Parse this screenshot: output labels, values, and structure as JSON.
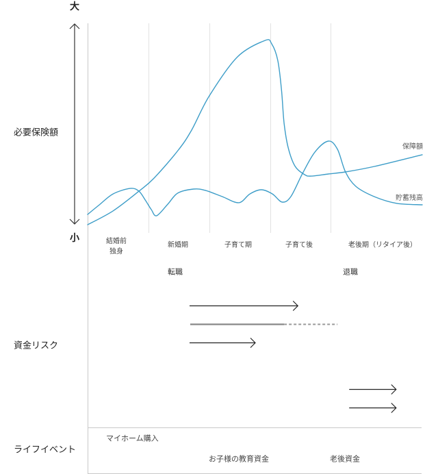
{
  "axis": {
    "top_label": "大",
    "bottom_label": "小"
  },
  "sections": {
    "coverage_label": "必要保険額",
    "risk_label": "資金リスク",
    "life_events_label": "ライフイベント"
  },
  "stages": [
    {
      "line1": "結婚前",
      "line2": "独身"
    },
    {
      "line1": "新婚期"
    },
    {
      "line1": "子育て期"
    },
    {
      "line1": "子育て後"
    },
    {
      "line1": "老後期（リタイア後）"
    }
  ],
  "career_events": [
    {
      "label": "転職"
    },
    {
      "label": "退職"
    }
  ],
  "curve_labels": {
    "coverage": "保障額",
    "savings": "貯蓄残高"
  },
  "risk": {
    "items": [
      {
        "type": "arrow",
        "start": 30.4,
        "end": 62.7,
        "y": 446
      },
      {
        "type": "line",
        "start": 30.6,
        "end": 58.6,
        "dashed_end": 74.5,
        "y": 473
      },
      {
        "type": "arrow",
        "start": 30.4,
        "end": 50.0,
        "y": 500
      },
      {
        "type": "arrow",
        "start": 78.0,
        "end": 92.0,
        "y": 568
      },
      {
        "type": "arrow",
        "start": 78.0,
        "end": 92.0,
        "y": 595
      }
    ]
  },
  "life_events": [
    {
      "label": "マイホーム購入"
    },
    {
      "label": "お子様の教育資金"
    },
    {
      "label": "老後資金"
    }
  ],
  "colors": {
    "curve": "#3d9dc8",
    "axis_arrow": "#333333",
    "risk_arrow": "#222222",
    "risk_line": "#888888",
    "frame": "#c8c8c8",
    "grid": "#e2e2e2"
  },
  "chart_data": {
    "type": "line",
    "title": "",
    "xlabel": "",
    "ylabel": "必要保険額",
    "y_axis_top": "大",
    "y_axis_bottom": "小",
    "xlim": [
      0,
      100
    ],
    "ylim": [
      0,
      100
    ],
    "grid": "vertical lines at stage boundaries",
    "categories": [
      "結婚前 独身",
      "新婚期",
      "子育て期",
      "子育て後",
      "老後期（リタイア後）"
    ],
    "category_boundaries": [
      0,
      18.2,
      36.3,
      54.5,
      72.4,
      100
    ],
    "annotations": [
      {
        "text": "転職",
        "stage": "新婚期"
      },
      {
        "text": "退職",
        "stage": "老後期（リタイア後）"
      }
    ],
    "series": [
      {
        "name": "保障額",
        "points": [
          [
            0.0,
            3.9
          ],
          [
            7.6,
            10.5
          ],
          [
            15.3,
            19.9
          ],
          [
            19.8,
            26.1
          ],
          [
            26.9,
            39.2
          ],
          [
            31.0,
            49.0
          ],
          [
            36.3,
            65.4
          ],
          [
            44.7,
            84.0
          ],
          [
            52.9,
            91.8
          ],
          [
            54.9,
            90.2
          ],
          [
            56.7,
            82.4
          ],
          [
            57.8,
            68.6
          ],
          [
            58.6,
            52.3
          ],
          [
            59.8,
            40.8
          ],
          [
            61.8,
            32.0
          ],
          [
            64.7,
            27.8
          ],
          [
            66.7,
            27.1
          ],
          [
            71.8,
            28.1
          ],
          [
            76.9,
            29.1
          ],
          [
            85.5,
            31.7
          ],
          [
            99.8,
            37.3
          ]
        ]
      },
      {
        "name": "貯蓄残高",
        "points": [
          [
            0.0,
            8.8
          ],
          [
            3.5,
            13.4
          ],
          [
            7.6,
            18.6
          ],
          [
            12.7,
            21.2
          ],
          [
            15.3,
            19.9
          ],
          [
            17.3,
            15.4
          ],
          [
            19.0,
            11.1
          ],
          [
            20.6,
            8.2
          ],
          [
            23.9,
            13.7
          ],
          [
            26.9,
            19.0
          ],
          [
            31.6,
            20.9
          ],
          [
            35.1,
            20.3
          ],
          [
            40.2,
            17.3
          ],
          [
            45.1,
            14.4
          ],
          [
            48.4,
            18.6
          ],
          [
            51.8,
            20.6
          ],
          [
            55.1,
            18.6
          ],
          [
            58.0,
            14.7
          ],
          [
            60.6,
            17.3
          ],
          [
            64.1,
            28.4
          ],
          [
            67.8,
            38.6
          ],
          [
            71.8,
            43.8
          ],
          [
            74.5,
            39.9
          ],
          [
            76.9,
            29.1
          ],
          [
            80.0,
            22.2
          ],
          [
            85.5,
            17.3
          ],
          [
            92.2,
            14.1
          ],
          [
            99.8,
            13.4
          ]
        ]
      }
    ]
  }
}
